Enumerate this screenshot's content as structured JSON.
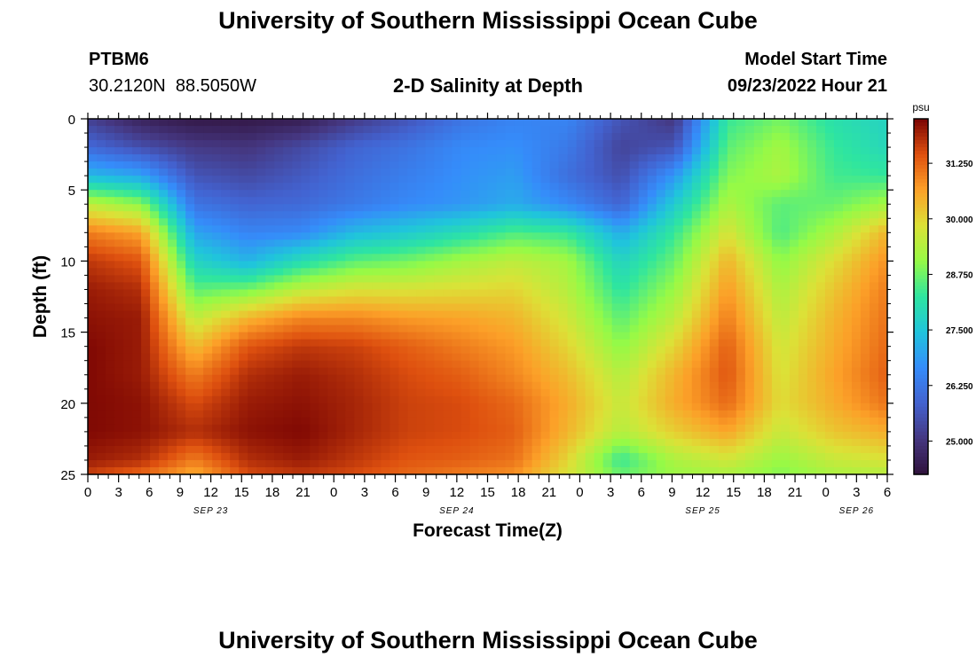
{
  "header": {
    "title": "University of Southern Mississippi Ocean Cube",
    "station_id": "PTBM6",
    "coords": "30.2120N  88.5050W",
    "subtitle": "2-D Salinity at Depth",
    "start_label": "Model Start Time",
    "start_value": "09/23/2022 Hour 21"
  },
  "footer": {
    "title": "University of Southern Mississippi Ocean Cube"
  },
  "chart_data": {
    "type": "heatmap",
    "xlabel": "Forecast Time(Z)",
    "ylabel": "Depth (ft)",
    "x_tick_labels": [
      "0",
      "3",
      "6",
      "9",
      "12",
      "15",
      "18",
      "21",
      "0",
      "3",
      "6",
      "9",
      "12",
      "15",
      "18",
      "21",
      "0",
      "3",
      "6",
      "9",
      "12",
      "15",
      "18",
      "21",
      "0",
      "3",
      "6"
    ],
    "date_labels": [
      {
        "text": "SEP 23",
        "at_tick": 4
      },
      {
        "text": "SEP 24",
        "at_tick": 12
      },
      {
        "text": "SEP 25",
        "at_tick": 20
      },
      {
        "text": "SEP 26",
        "at_tick": 25
      }
    ],
    "y_ticks": [
      0,
      5,
      10,
      15,
      20,
      25
    ],
    "ylim": [
      0,
      25
    ],
    "y_inverted": true,
    "colorbar": {
      "unit": "psu",
      "min": 24.25,
      "max": 32.25,
      "tick_values": [
        25.0,
        26.25,
        27.5,
        28.75,
        30.0,
        31.25
      ],
      "tick_labels": [
        "25.000",
        "26.250",
        "27.500",
        "28.750",
        "30.000",
        "31.250"
      ],
      "colormap": "turbo"
    },
    "grid": false,
    "salinity_rows": [
      {
        "depth": 0,
        "values": [
          25.2,
          24.6,
          24.4,
          24.4,
          24.5,
          25.1,
          25.6,
          26.2,
          26.5,
          26.5,
          25.6,
          25.0,
          28.3,
          28.8,
          28.1,
          27.8
        ]
      },
      {
        "depth": 2,
        "values": [
          26.0,
          25.5,
          25.1,
          25.0,
          25.4,
          25.9,
          26.2,
          26.6,
          26.7,
          26.3,
          25.3,
          25.6,
          28.6,
          29.2,
          28.3,
          27.9
        ]
      },
      {
        "depth": 4,
        "values": [
          27.3,
          27.0,
          25.6,
          25.4,
          25.7,
          26.1,
          26.4,
          26.7,
          26.9,
          26.1,
          25.5,
          26.8,
          28.9,
          29.3,
          28.4,
          28.3
        ]
      },
      {
        "depth": 6,
        "values": [
          29.5,
          29.0,
          26.2,
          25.9,
          26.0,
          26.3,
          26.6,
          26.8,
          27.1,
          26.6,
          25.9,
          27.6,
          29.3,
          28.6,
          28.7,
          29.2
        ]
      },
      {
        "depth": 8,
        "values": [
          31.0,
          30.6,
          27.0,
          26.5,
          26.6,
          27.3,
          27.6,
          28.0,
          28.5,
          28.3,
          27.1,
          28.3,
          29.8,
          28.5,
          29.3,
          30.4
        ]
      },
      {
        "depth": 10,
        "values": [
          31.7,
          31.4,
          27.8,
          27.2,
          28.0,
          28.6,
          28.8,
          29.2,
          29.5,
          29.2,
          27.8,
          28.7,
          30.4,
          29.0,
          29.9,
          30.8
        ]
      },
      {
        "depth": 12,
        "values": [
          32.0,
          31.8,
          28.6,
          28.8,
          29.5,
          29.8,
          29.8,
          29.9,
          30.0,
          29.4,
          28.2,
          29.1,
          30.7,
          29.3,
          30.2,
          31.0
        ]
      },
      {
        "depth": 14,
        "values": [
          32.1,
          32.0,
          29.5,
          30.4,
          30.9,
          30.9,
          30.7,
          30.6,
          30.4,
          29.7,
          28.6,
          29.5,
          31.0,
          29.5,
          30.4,
          31.1
        ]
      },
      {
        "depth": 16,
        "values": [
          32.2,
          32.0,
          30.3,
          31.4,
          31.7,
          31.6,
          31.3,
          31.0,
          30.7,
          30.0,
          29.0,
          30.0,
          31.3,
          29.7,
          30.5,
          31.2
        ]
      },
      {
        "depth": 18,
        "values": [
          32.2,
          32.0,
          31.0,
          31.8,
          32.0,
          31.8,
          31.5,
          31.3,
          30.9,
          30.3,
          29.4,
          30.4,
          31.4,
          29.8,
          30.6,
          31.3
        ]
      },
      {
        "depth": 20,
        "values": [
          32.2,
          32.1,
          31.5,
          32.0,
          32.1,
          31.9,
          31.6,
          31.5,
          31.2,
          30.5,
          29.6,
          30.5,
          31.2,
          29.9,
          30.5,
          31.1
        ]
      },
      {
        "depth": 22,
        "values": [
          32.2,
          32.1,
          31.8,
          32.1,
          32.2,
          31.9,
          31.6,
          31.5,
          31.3,
          30.4,
          29.4,
          30.1,
          30.6,
          29.6,
          30.2,
          30.5
        ]
      },
      {
        "depth": 24,
        "values": [
          32.0,
          31.8,
          31.0,
          31.8,
          32.0,
          31.7,
          31.4,
          31.3,
          31.1,
          30.0,
          28.3,
          29.3,
          29.7,
          29.1,
          29.6,
          29.8
        ]
      },
      {
        "depth": 25,
        "values": [
          31.6,
          31.2,
          30.5,
          31.5,
          31.7,
          31.5,
          31.2,
          31.0,
          30.8,
          29.8,
          28.7,
          29.1,
          29.3,
          28.9,
          29.3,
          29.4
        ]
      }
    ]
  }
}
